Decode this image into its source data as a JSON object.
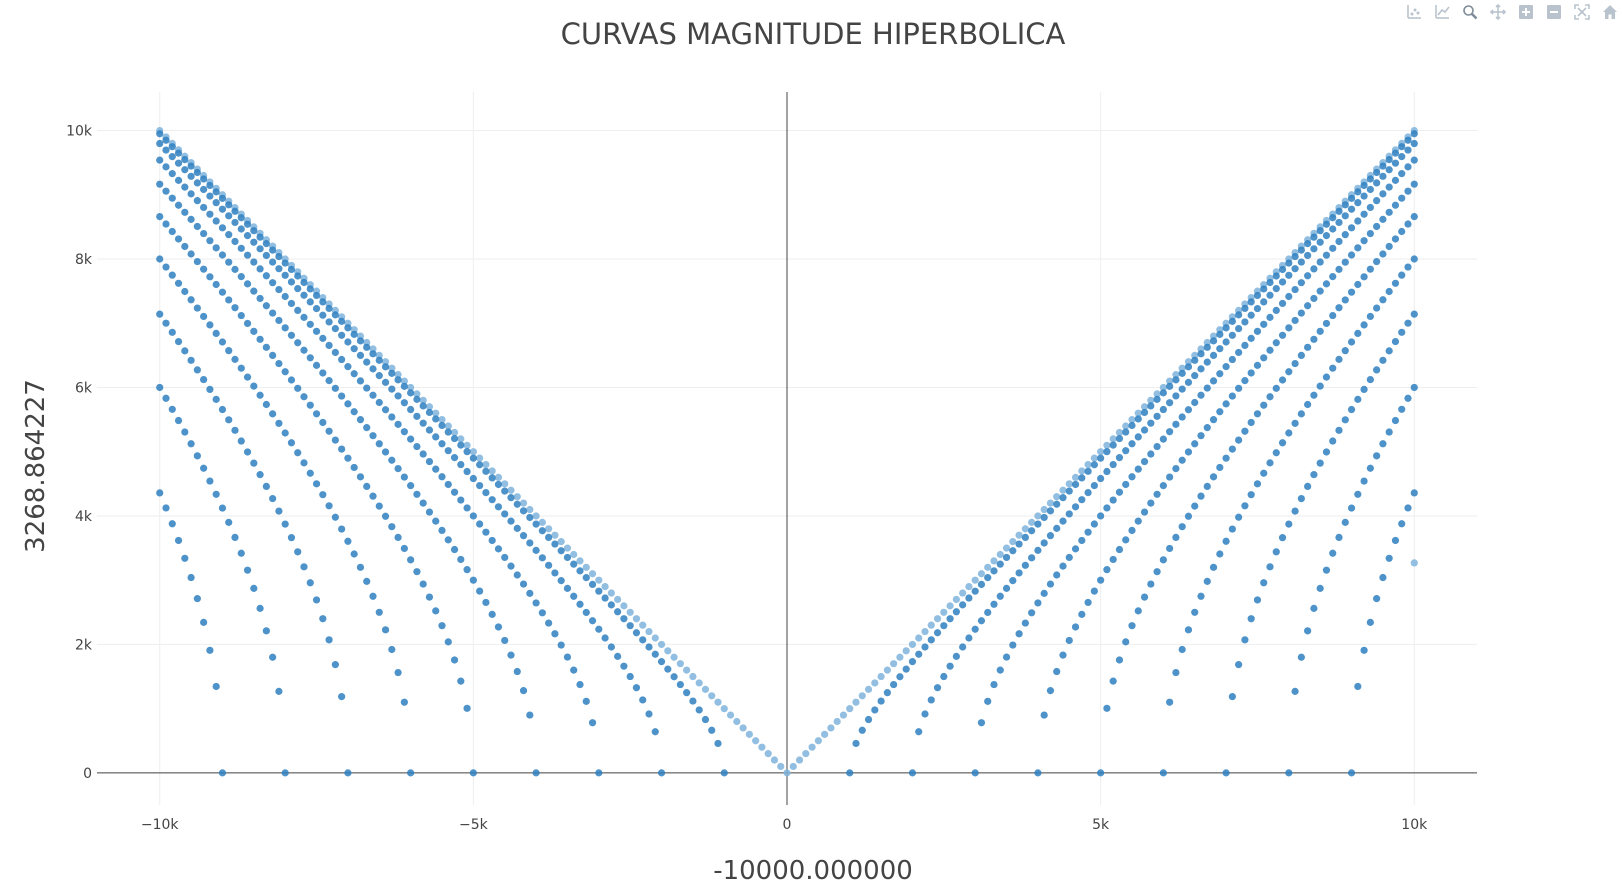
{
  "chart_data": {
    "type": "scatter",
    "title": "CURVAS MAGNITUDE HIPERBOLICA",
    "xlabel": "-10000.000000",
    "ylabel": "3268.864227",
    "xlim": [
      -11000,
      11000
    ],
    "ylim": [
      -500,
      10600
    ],
    "x_ticks": [
      -10000,
      -5000,
      0,
      5000,
      10000
    ],
    "x_tick_labels": [
      "−10k",
      "−5k",
      "0",
      "5k",
      "10k"
    ],
    "y_ticks": [
      0,
      2000,
      4000,
      6000,
      8000,
      10000
    ],
    "y_tick_labels": [
      "0",
      "2k",
      "4k",
      "6k",
      "8k",
      "10k"
    ],
    "grid": true,
    "zero_lines": true,
    "marker_color": "#2e7fc0",
    "marker_color_light": "#7fb4dc",
    "note_series_rule": "Branches of hyperbolas y = sqrt(x^2 - a^2) for |x| from a to 10000 in steps of 100",
    "series_a": [
      0,
      1000,
      2000,
      3000,
      4000,
      5000,
      6000,
      7000,
      8000,
      9000
    ],
    "x_step": 100,
    "x_max": 10000,
    "extra_points": [
      {
        "x": 10000,
        "y": 3268.86
      }
    ]
  },
  "modebar": {
    "buttons": [
      "compare-data-icon",
      "spike-lines-icon",
      "zoom-icon",
      "pan-icon",
      "zoom-in-icon",
      "zoom-out-icon",
      "autoscale-icon",
      "reset-axes-icon"
    ]
  }
}
